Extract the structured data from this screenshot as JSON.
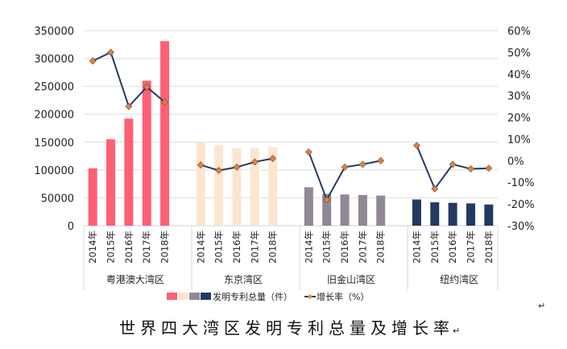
{
  "chart_data": {
    "type": "bar",
    "title": "世界四大湾区发明专利总量及增长率",
    "groups": [
      "粤港澳大湾区",
      "东京湾区",
      "旧金山湾区",
      "纽约湾区"
    ],
    "years": [
      "2014年",
      "2015年",
      "2016年",
      "2017年",
      "2018年"
    ],
    "group_colors": [
      "#ff5f73",
      "#fbe6cf",
      "#908894",
      "#243a62"
    ],
    "line_color": "#243a62",
    "marker_color": "#ed7d31",
    "series": [
      {
        "name": "发明专利总量（件）",
        "axis": "left",
        "values": [
          [
            103000,
            155000,
            192000,
            260000,
            331000
          ],
          [
            150000,
            144000,
            139000,
            139000,
            141000
          ],
          [
            69000,
            57000,
            56000,
            55000,
            54000
          ],
          [
            47000,
            42000,
            41000,
            40000,
            38000
          ]
        ]
      },
      {
        "name": "增长率（%）",
        "axis": "right",
        "values": [
          [
            46,
            50,
            25,
            34,
            27
          ],
          [
            -2,
            -4.5,
            -3,
            -0.6,
            1
          ],
          [
            4,
            -18,
            -3,
            -1.7,
            0
          ],
          [
            7,
            -13,
            -1.7,
            -3.8,
            -3.5
          ]
        ]
      }
    ],
    "ylim": [
      0,
      350000
    ],
    "yticks": [
      "0",
      "50000",
      "100000",
      "150000",
      "200000",
      "250000",
      "300000",
      "350000"
    ],
    "y2lim": [
      -30,
      60
    ],
    "y2ticks": [
      "-30%",
      "-20%",
      "-10%",
      "0%",
      "10%",
      "20%",
      "30%",
      "40%",
      "50%",
      "60%"
    ],
    "grid": true,
    "legend": "bottom"
  },
  "caption_mark": "↵"
}
